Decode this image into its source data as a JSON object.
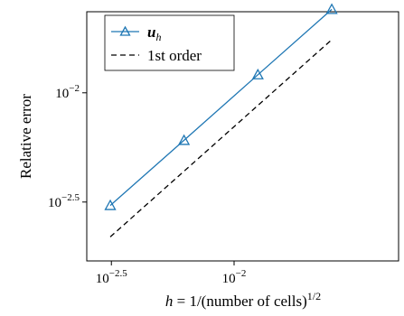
{
  "chart_data": {
    "type": "line",
    "title": "",
    "xlabel": "h = 1/(number of cells)^1/2",
    "xlabel_parts": {
      "lhs": "h",
      "eq": " = 1/(number of cells)",
      "exp": "1/2"
    },
    "ylabel": "Relative error",
    "x_scale": "log",
    "y_scale": "log",
    "xlim": [
      0.00251,
      0.0468
    ],
    "ylim": [
      0.0017,
      0.0235
    ],
    "x_ticks": [
      {
        "value": 0.0031623,
        "base": "10",
        "exp": "−2.5"
      },
      {
        "value": 0.01,
        "base": "10",
        "exp": "−2"
      }
    ],
    "y_ticks": [
      {
        "value": 0.0031623,
        "base": "10",
        "exp": "−2.5"
      },
      {
        "value": 0.01,
        "base": "10",
        "exp": "−2"
      }
    ],
    "series": [
      {
        "name": "u_h",
        "label_parts": {
          "main": "u",
          "sub": "h"
        },
        "color": "#1f77b4",
        "marker": "triangle",
        "x": [
          0.00313,
          0.00625,
          0.0125,
          0.025
        ],
        "y": [
          0.00305,
          0.00606,
          0.0121,
          0.0241
        ]
      },
      {
        "name": "1st order",
        "color": "#000000",
        "style": "dashed",
        "x": [
          0.00313,
          0.025
        ],
        "y": [
          0.00219,
          0.01751
        ]
      }
    ],
    "grid": false,
    "legend_position": "top-left"
  }
}
